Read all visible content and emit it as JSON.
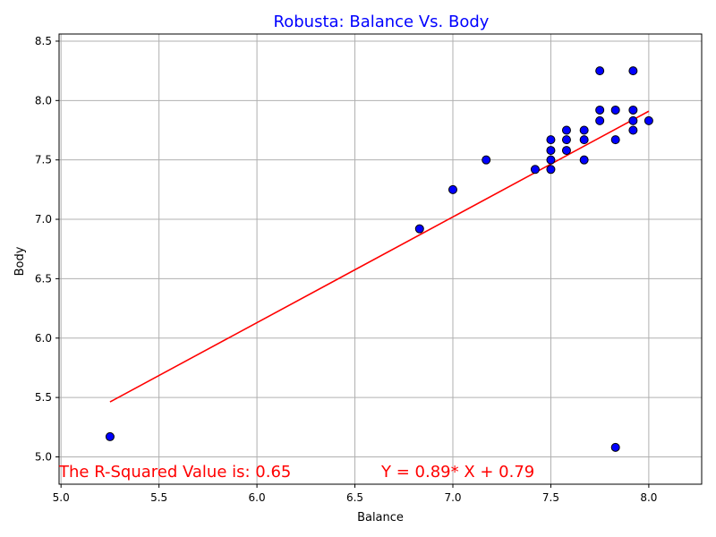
{
  "chart_data": {
    "type": "scatter",
    "title": "Robusta: Balance Vs. Body",
    "title_color": "#0000ff",
    "xlabel": "Balance",
    "ylabel": "Body",
    "xlim": [
      4.99,
      8.27
    ],
    "ylim": [
      4.77,
      8.56
    ],
    "grid": true,
    "x_ticks": [
      "5.0",
      "5.5",
      "6.0",
      "6.5",
      "7.0",
      "7.5",
      "8.0"
    ],
    "y_ticks": [
      "5.0",
      "5.5",
      "6.0",
      "6.5",
      "7.0",
      "7.5",
      "8.0",
      "8.5"
    ],
    "marker_color": "#0000ff",
    "marker_edge_color": "#000000",
    "points": [
      {
        "x": 5.25,
        "y": 5.17
      },
      {
        "x": 6.83,
        "y": 6.92
      },
      {
        "x": 7.0,
        "y": 7.25
      },
      {
        "x": 7.17,
        "y": 7.5
      },
      {
        "x": 7.42,
        "y": 7.42
      },
      {
        "x": 7.5,
        "y": 7.42
      },
      {
        "x": 7.5,
        "y": 7.5
      },
      {
        "x": 7.5,
        "y": 7.58
      },
      {
        "x": 7.5,
        "y": 7.67
      },
      {
        "x": 7.58,
        "y": 7.58
      },
      {
        "x": 7.58,
        "y": 7.67
      },
      {
        "x": 7.58,
        "y": 7.75
      },
      {
        "x": 7.67,
        "y": 7.5
      },
      {
        "x": 7.67,
        "y": 7.67
      },
      {
        "x": 7.67,
        "y": 7.75
      },
      {
        "x": 7.75,
        "y": 7.83
      },
      {
        "x": 7.75,
        "y": 7.92
      },
      {
        "x": 7.75,
        "y": 8.25
      },
      {
        "x": 7.83,
        "y": 7.67
      },
      {
        "x": 7.83,
        "y": 7.92
      },
      {
        "x": 7.83,
        "y": 5.08
      },
      {
        "x": 7.92,
        "y": 7.75
      },
      {
        "x": 7.92,
        "y": 7.83
      },
      {
        "x": 7.92,
        "y": 7.92
      },
      {
        "x": 7.92,
        "y": 8.25
      },
      {
        "x": 8.0,
        "y": 7.83
      }
    ],
    "fit_line": {
      "slope": 0.89,
      "intercept": 0.79,
      "x_range": [
        5.25,
        8.0
      ],
      "color": "#ff0000"
    },
    "annotations": {
      "r_squared": "The R-Squared Value is: 0.65",
      "equation": "Y = 0.89* X + 0.79",
      "color": "#ff0000"
    }
  }
}
